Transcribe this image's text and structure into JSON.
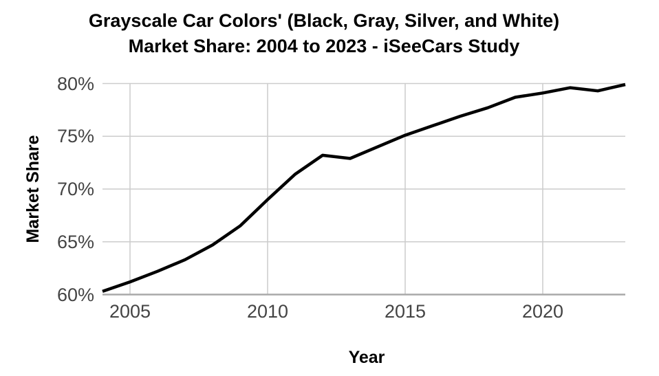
{
  "chart_data": {
    "type": "line",
    "title_line1": "Grayscale Car Colors' (Black, Gray, Silver, and White)",
    "title_line2": "Market Share: 2004 to 2023 - iSeeCars Study",
    "xlabel": "Year",
    "ylabel": "Market Share",
    "x": [
      2004,
      2005,
      2006,
      2007,
      2008,
      2009,
      2010,
      2011,
      2012,
      2013,
      2014,
      2015,
      2016,
      2017,
      2018,
      2019,
      2020,
      2021,
      2022,
      2023
    ],
    "values": [
      60.3,
      61.2,
      62.2,
      63.3,
      64.7,
      66.5,
      69.0,
      71.4,
      73.2,
      72.9,
      74.0,
      75.1,
      76.0,
      76.9,
      77.7,
      78.7,
      79.1,
      79.6,
      79.3,
      79.9
    ],
    "xlim": [
      2004,
      2023
    ],
    "ylim": [
      60,
      80
    ],
    "xticks": [
      {
        "value": 2005,
        "label": "2005"
      },
      {
        "value": 2010,
        "label": "2010"
      },
      {
        "value": 2015,
        "label": "2015"
      },
      {
        "value": 2020,
        "label": "2020"
      }
    ],
    "yticks": [
      {
        "value": 60,
        "label": "60%"
      },
      {
        "value": 65,
        "label": "65%"
      },
      {
        "value": 70,
        "label": "70%"
      },
      {
        "value": 75,
        "label": "75%"
      },
      {
        "value": 80,
        "label": "80%"
      }
    ],
    "grid": true,
    "legend": false,
    "line_color": "#000000",
    "gridline_color": "#cccccc",
    "axisline_color": "#a9a9a9",
    "tick_label_color": "#444444"
  }
}
